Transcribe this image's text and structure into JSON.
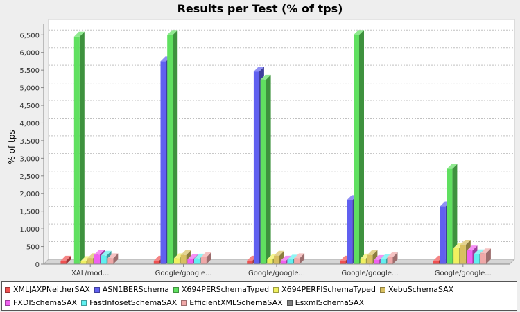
{
  "chart_data": {
    "type": "bar",
    "title": "Results per Test (% of tps)",
    "ylabel": "% of tps",
    "xlabel": "",
    "ylim": [
      0,
      6800
    ],
    "yticks": [
      0,
      500,
      1000,
      1500,
      2000,
      2500,
      3000,
      3500,
      4000,
      4500,
      5000,
      5500,
      6000,
      6500
    ],
    "ytick_labels": [
      "0",
      "500",
      "1,000",
      "1,500",
      "2,000",
      "2,500",
      "3,000",
      "3,500",
      "4,000",
      "4,500",
      "5,000",
      "5,500",
      "6,000",
      "6,500"
    ],
    "grid": true,
    "legend_position": "bottom",
    "categories": [
      "XAL/mod...",
      "Google/google...",
      "Google/google...",
      "Google/google...",
      "Google/google..."
    ],
    "series": [
      {
        "name": "XMLJAXPNeitherSAX",
        "color": "#f05050",
        "values": [
          100,
          100,
          100,
          100,
          100
        ]
      },
      {
        "name": "ASN1BERSchema",
        "color": "#6060f0",
        "values": [
          0,
          5750,
          5460,
          1820,
          1640
        ]
      },
      {
        "name": "X694PERSchemaTyped",
        "color": "#60e060",
        "values": [
          6450,
          6500,
          5230,
          6500,
          2700
        ]
      },
      {
        "name": "X694PERFISchemaTyped",
        "color": "#f0f060",
        "values": [
          90,
          170,
          140,
          160,
          460
        ]
      },
      {
        "name": "XebuSchemaSAX",
        "color": "#d8c060",
        "values": [
          170,
          260,
          240,
          260,
          550
        ]
      },
      {
        "name": "FXDISchemaSAX",
        "color": "#f060f0",
        "values": [
          270,
          140,
          100,
          120,
          390
        ]
      },
      {
        "name": "FastInfosetSchemaSAX",
        "color": "#60f0f0",
        "values": [
          240,
          160,
          130,
          150,
          280
        ]
      },
      {
        "name": "EfficientXMLSchemaSAX",
        "color": "#f0a8a8",
        "values": [
          170,
          200,
          170,
          200,
          310
        ]
      },
      {
        "name": "EsxmlSchemaSAX",
        "color": "#808080",
        "values": [
          0,
          0,
          0,
          0,
          0
        ]
      }
    ]
  }
}
